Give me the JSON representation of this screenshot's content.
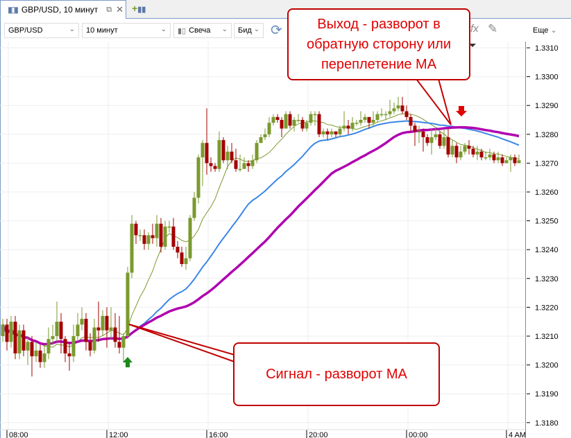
{
  "tab": {
    "title": "GBP/USD, 10 минут",
    "icon": "candles-icon"
  },
  "toolbar": {
    "symbol": "GBP/USD",
    "interval": "10 минут",
    "chart_type": "Свеча",
    "price_type": "Бид",
    "more": "Еще"
  },
  "annotations": {
    "exit": "Выход - разворот в обратную сторону или переплетение МА",
    "signal": "Сигнал - разворот МА"
  },
  "colors": {
    "up": "#7a9a2e",
    "down": "#a30000",
    "ma_fast": "#7a9a2e",
    "ma_mid": "#3a86e8",
    "ma_slow": "#b000b0",
    "callout": "#c00000",
    "buy_arrow": "#1a8a1a",
    "sell_arrow": "#e00000"
  },
  "chart_data": {
    "type": "candlestick",
    "interval": "10 минут",
    "ylim": [
      1.3175,
      1.3312
    ],
    "y_ticks": [
      "1.3310",
      "1.3300",
      "1.3290",
      "1.3280",
      "1.3270",
      "1.3260",
      "1.3250",
      "1.3240",
      "1.3230",
      "1.3220",
      "1.3210",
      "1.3200",
      "1.3190",
      "1.3180"
    ],
    "x_ticks": [
      {
        "label": "08:00",
        "index": 1
      },
      {
        "label": "12:00",
        "index": 25
      },
      {
        "label": "16:00",
        "index": 49
      },
      {
        "label": "20:00",
        "index": 73
      },
      {
        "label": "00:00",
        "index": 97
      },
      {
        "label": "4 AM",
        "index": 121
      }
    ],
    "grid": true,
    "moving_averages": [
      "fast",
      "mid",
      "slow"
    ],
    "signals": [
      {
        "type": "buy",
        "index": 30
      },
      {
        "type": "sell",
        "index": 110
      }
    ],
    "candles": [
      [
        1.321,
        1.3216,
        1.3208,
        1.3214
      ],
      [
        1.3214,
        1.3216,
        1.3205,
        1.3208
      ],
      [
        1.3208,
        1.3217,
        1.3206,
        1.3215
      ],
      [
        1.3215,
        1.3217,
        1.3202,
        1.3204
      ],
      [
        1.3204,
        1.3214,
        1.3202,
        1.3212
      ],
      [
        1.3212,
        1.3214,
        1.3203,
        1.3205
      ],
      [
        1.3205,
        1.321,
        1.32,
        1.3208
      ],
      [
        1.3208,
        1.321,
        1.3196,
        1.3203
      ],
      [
        1.3203,
        1.3208,
        1.3201,
        1.3205
      ],
      [
        1.3205,
        1.3207,
        1.3199,
        1.3201
      ],
      [
        1.3201,
        1.3207,
        1.3199,
        1.3204
      ],
      [
        1.3204,
        1.3213,
        1.3202,
        1.3209
      ],
      [
        1.3209,
        1.3214,
        1.3207,
        1.321
      ],
      [
        1.321,
        1.3222,
        1.3208,
        1.3215
      ],
      [
        1.3215,
        1.3218,
        1.3204,
        1.3209
      ],
      [
        1.3209,
        1.321,
        1.3201,
        1.3204
      ],
      [
        1.3204,
        1.3208,
        1.3198,
        1.3203
      ],
      [
        1.3203,
        1.3214,
        1.3201,
        1.321
      ],
      [
        1.321,
        1.3218,
        1.3208,
        1.3214
      ],
      [
        1.3214,
        1.322,
        1.3212,
        1.3216
      ],
      [
        1.3216,
        1.3218,
        1.3205,
        1.3208
      ],
      [
        1.3208,
        1.3211,
        1.3203,
        1.3205
      ],
      [
        1.3205,
        1.3216,
        1.3204,
        1.3213
      ],
      [
        1.3213,
        1.3222,
        1.3208,
        1.3212
      ],
      [
        1.3212,
        1.3219,
        1.321,
        1.3217
      ],
      [
        1.3217,
        1.322,
        1.3206,
        1.3212
      ],
      [
        1.3212,
        1.322,
        1.3209,
        1.3213
      ],
      [
        1.3213,
        1.3218,
        1.3206,
        1.3208
      ],
      [
        1.3208,
        1.3217,
        1.3204,
        1.3206
      ],
      [
        1.3206,
        1.3211,
        1.3201,
        1.321
      ],
      [
        1.321,
        1.3234,
        1.3209,
        1.3232
      ],
      [
        1.3232,
        1.3252,
        1.323,
        1.3249
      ],
      [
        1.3249,
        1.325,
        1.3242,
        1.3245
      ],
      [
        1.3245,
        1.3247,
        1.3243,
        1.3245
      ],
      [
        1.3245,
        1.3247,
        1.324,
        1.3242
      ],
      [
        1.3242,
        1.3246,
        1.324,
        1.3245
      ],
      [
        1.3245,
        1.3249,
        1.3242,
        1.3244
      ],
      [
        1.3244,
        1.3252,
        1.3241,
        1.3249
      ],
      [
        1.3249,
        1.3251,
        1.3239,
        1.3241
      ],
      [
        1.3241,
        1.325,
        1.324,
        1.3248
      ],
      [
        1.3248,
        1.325,
        1.3246,
        1.3248
      ],
      [
        1.3248,
        1.3251,
        1.324,
        1.3241
      ],
      [
        1.3241,
        1.3243,
        1.3237,
        1.3239
      ],
      [
        1.3239,
        1.3241,
        1.3234,
        1.3235
      ],
      [
        1.3235,
        1.3241,
        1.3233,
        1.3237
      ],
      [
        1.3237,
        1.3252,
        1.3236,
        1.3251
      ],
      [
        1.3251,
        1.326,
        1.325,
        1.3258
      ],
      [
        1.3258,
        1.3273,
        1.3256,
        1.3272
      ],
      [
        1.3272,
        1.3278,
        1.3262,
        1.3277
      ],
      [
        1.3277,
        1.3289,
        1.3266,
        1.327
      ],
      [
        1.327,
        1.3272,
        1.3267,
        1.3269
      ],
      [
        1.3269,
        1.327,
        1.3267,
        1.3268
      ],
      [
        1.3268,
        1.3281,
        1.3267,
        1.3278
      ],
      [
        1.3278,
        1.3279,
        1.327,
        1.3271
      ],
      [
        1.3271,
        1.3276,
        1.3268,
        1.3274
      ],
      [
        1.3274,
        1.3277,
        1.327,
        1.3271
      ],
      [
        1.3271,
        1.3275,
        1.3267,
        1.3268
      ],
      [
        1.3268,
        1.3273,
        1.3267,
        1.3268
      ],
      [
        1.3268,
        1.3272,
        1.3268,
        1.327
      ],
      [
        1.327,
        1.3271,
        1.3267,
        1.3269
      ],
      [
        1.3269,
        1.3273,
        1.3268,
        1.3271
      ],
      [
        1.3271,
        1.3278,
        1.327,
        1.3277
      ],
      [
        1.3277,
        1.328,
        1.3277,
        1.3279
      ],
      [
        1.3279,
        1.3282,
        1.3278,
        1.328
      ],
      [
        1.328,
        1.3286,
        1.3279,
        1.3284
      ],
      [
        1.3284,
        1.3287,
        1.3283,
        1.3286
      ],
      [
        1.3286,
        1.3287,
        1.3284,
        1.3285
      ],
      [
        1.3285,
        1.3286,
        1.3279,
        1.3282
      ],
      [
        1.3282,
        1.3288,
        1.3282,
        1.3287
      ],
      [
        1.3287,
        1.3288,
        1.3282,
        1.3283
      ],
      [
        1.3283,
        1.3286,
        1.3281,
        1.3285
      ],
      [
        1.3285,
        1.3287,
        1.3284,
        1.3285
      ],
      [
        1.3285,
        1.3286,
        1.3281,
        1.3282
      ],
      [
        1.3282,
        1.3285,
        1.3281,
        1.3284
      ],
      [
        1.3284,
        1.3288,
        1.3283,
        1.3287
      ],
      [
        1.3287,
        1.3288,
        1.3283,
        1.3287
      ],
      [
        1.3287,
        1.3288,
        1.3279,
        1.328
      ],
      [
        1.328,
        1.3282,
        1.3279,
        1.3281
      ],
      [
        1.3281,
        1.3282,
        1.3278,
        1.328
      ],
      [
        1.328,
        1.3282,
        1.3279,
        1.3281
      ],
      [
        1.3281,
        1.3281,
        1.3279,
        1.328
      ],
      [
        1.328,
        1.3283,
        1.3279,
        1.3282
      ],
      [
        1.3282,
        1.3288,
        1.3281,
        1.3283
      ],
      [
        1.3283,
        1.3285,
        1.328,
        1.3282
      ],
      [
        1.3282,
        1.3286,
        1.3281,
        1.3284
      ],
      [
        1.3284,
        1.3285,
        1.3283,
        1.3284
      ],
      [
        1.3284,
        1.3288,
        1.3283,
        1.3285
      ],
      [
        1.3285,
        1.3287,
        1.3284,
        1.3286
      ],
      [
        1.3286,
        1.3286,
        1.3282,
        1.3284
      ],
      [
        1.3284,
        1.3288,
        1.3283,
        1.3285
      ],
      [
        1.3285,
        1.3288,
        1.3284,
        1.3287
      ],
      [
        1.3287,
        1.3289,
        1.3286,
        1.3287
      ],
      [
        1.3287,
        1.3288,
        1.3285,
        1.3287
      ],
      [
        1.3287,
        1.3292,
        1.3286,
        1.3288
      ],
      [
        1.3288,
        1.3291,
        1.3287,
        1.3289
      ],
      [
        1.3289,
        1.3293,
        1.3288,
        1.329
      ],
      [
        1.329,
        1.3293,
        1.3287,
        1.3288
      ],
      [
        1.3288,
        1.329,
        1.3285,
        1.3286
      ],
      [
        1.3286,
        1.3287,
        1.3281,
        1.3283
      ],
      [
        1.3283,
        1.3284,
        1.3276,
        1.3281
      ],
      [
        1.3281,
        1.3283,
        1.3277,
        1.3281
      ],
      [
        1.3281,
        1.3282,
        1.3274,
        1.3279
      ],
      [
        1.3279,
        1.328,
        1.3276,
        1.3277
      ],
      [
        1.3277,
        1.3282,
        1.3273,
        1.3279
      ],
      [
        1.3279,
        1.3282,
        1.3278,
        1.328
      ],
      [
        1.328,
        1.3281,
        1.3275,
        1.3276
      ],
      [
        1.3276,
        1.3282,
        1.3275,
        1.3279
      ],
      [
        1.3279,
        1.3282,
        1.3272,
        1.3273
      ],
      [
        1.3273,
        1.3278,
        1.3272,
        1.3276
      ],
      [
        1.3276,
        1.3277,
        1.327,
        1.3272
      ],
      [
        1.3272,
        1.3276,
        1.3271,
        1.3274
      ],
      [
        1.3274,
        1.3277,
        1.3273,
        1.3276
      ],
      [
        1.3276,
        1.3278,
        1.3273,
        1.3275
      ],
      [
        1.3275,
        1.3276,
        1.3272,
        1.3273
      ],
      [
        1.3273,
        1.3276,
        1.3271,
        1.3274
      ],
      [
        1.3274,
        1.3275,
        1.3271,
        1.3272
      ],
      [
        1.3272,
        1.3274,
        1.3271,
        1.3272
      ],
      [
        1.3272,
        1.3275,
        1.3271,
        1.3273
      ],
      [
        1.3273,
        1.3274,
        1.327,
        1.3271
      ],
      [
        1.3271,
        1.3274,
        1.327,
        1.3272
      ],
      [
        1.3272,
        1.3273,
        1.3269,
        1.327
      ],
      [
        1.327,
        1.3272,
        1.327,
        1.3271
      ],
      [
        1.3271,
        1.3273,
        1.3267,
        1.3272
      ],
      [
        1.3272,
        1.3273,
        1.3269,
        1.327
      ],
      [
        1.327,
        1.3273,
        1.327,
        1.3271
      ]
    ]
  }
}
